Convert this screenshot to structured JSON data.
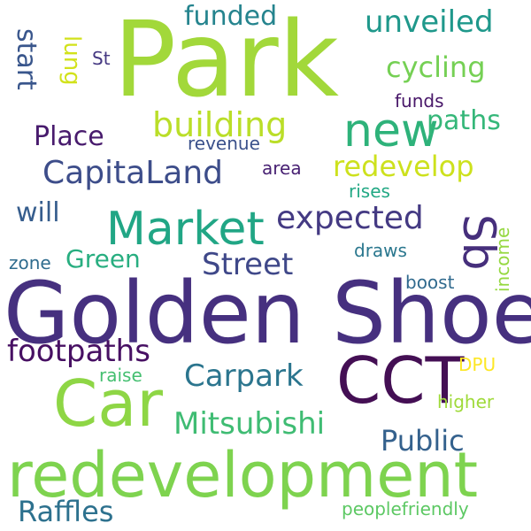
{
  "words": [
    {
      "id": "park",
      "text": "Park",
      "color": "#a2d83a"
    },
    {
      "id": "golden-shoe",
      "text": "Golden Shoe",
      "color": "#46307f"
    },
    {
      "id": "redevelopment",
      "text": "redevelopment",
      "color": "#7ed34f"
    },
    {
      "id": "car",
      "text": "Car",
      "color": "#8ed645"
    },
    {
      "id": "cct",
      "text": "CCT",
      "color": "#440f54"
    },
    {
      "id": "market",
      "text": "Market",
      "color": "#21a685"
    },
    {
      "id": "new",
      "text": "new",
      "color": "#2eb27a"
    },
    {
      "id": "sb",
      "text": "Sb",
      "color": "#462f7c"
    },
    {
      "id": "capitaland",
      "text": "CapitaLand",
      "color": "#3d4d8a"
    },
    {
      "id": "expected",
      "text": "expected",
      "color": "#443a83"
    },
    {
      "id": "redevelop",
      "text": "redevelop",
      "color": "#cde11d"
    },
    {
      "id": "building",
      "text": "building",
      "color": "#bade28"
    },
    {
      "id": "carpark",
      "text": "Carpark",
      "color": "#2b758e"
    },
    {
      "id": "street",
      "text": "Street",
      "color": "#3f4889"
    },
    {
      "id": "mitsubishi",
      "text": "Mitsubishi",
      "color": "#3fbc73"
    },
    {
      "id": "footpaths",
      "text": "footpaths",
      "color": "#471063"
    },
    {
      "id": "raffles",
      "text": "Raffles",
      "color": "#2d718e"
    },
    {
      "id": "public",
      "text": "Public",
      "color": "#34618d"
    },
    {
      "id": "unveiled",
      "text": "unveiled",
      "color": "#1f988b"
    },
    {
      "id": "cycling",
      "text": "cycling",
      "color": "#75d054"
    },
    {
      "id": "funded",
      "text": "funded",
      "color": "#25848e"
    },
    {
      "id": "paths",
      "text": "paths",
      "color": "#35b779"
    },
    {
      "id": "place",
      "text": "Place",
      "color": "#481b6d"
    },
    {
      "id": "green",
      "text": "Green",
      "color": "#28ae80"
    },
    {
      "id": "will",
      "text": "will",
      "color": "#365d8d"
    },
    {
      "id": "start",
      "text": "start",
      "color": "#39568c"
    },
    {
      "id": "lung",
      "text": "lung",
      "color": "#d2e21b"
    },
    {
      "id": "st",
      "text": "St",
      "color": "#453882"
    },
    {
      "id": "funds",
      "text": "funds",
      "color": "#481769"
    },
    {
      "id": "revenue",
      "text": "revenue",
      "color": "#3b518b"
    },
    {
      "id": "area",
      "text": "area",
      "color": "#482173"
    },
    {
      "id": "rises",
      "text": "rises",
      "color": "#22a884"
    },
    {
      "id": "draws",
      "text": "draws",
      "color": "#2a778e"
    },
    {
      "id": "zone",
      "text": "zone",
      "color": "#2f6c8e"
    },
    {
      "id": "boost",
      "text": "boost",
      "color": "#306a8e"
    },
    {
      "id": "income",
      "text": "income",
      "color": "#95d840"
    },
    {
      "id": "dpu",
      "text": "DPU",
      "color": "#fde725"
    },
    {
      "id": "raise",
      "text": "raise",
      "color": "#44bf70"
    },
    {
      "id": "higher",
      "text": "higher",
      "color": "#9fda3a"
    },
    {
      "id": "peoplefriendly",
      "text": "peoplefriendly",
      "color": "#5cc863"
    }
  ]
}
